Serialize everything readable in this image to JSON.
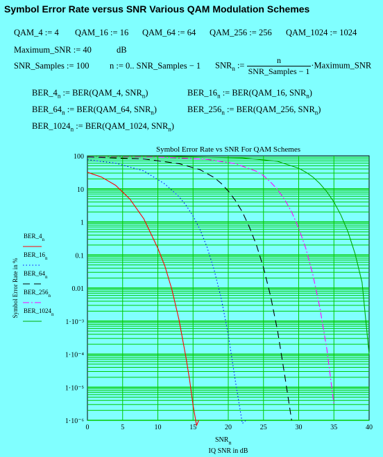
{
  "worksheet": {
    "title": "Symbol Error Rate versus SNR Various QAM Modulation Schemes",
    "defs": {
      "qam4": "QAM_4 := 4",
      "qam16": "QAM_16 := 16",
      "qam64": "QAM_64 := 64",
      "qam256": "QAM_256 := 256",
      "qam1024": "QAM_1024 := 1024",
      "max_snr": "Maximum_SNR := 40",
      "max_snr_unit": "dB",
      "snr_samples": "SNR_Samples := 100",
      "range": "n := 0.. SNR_Samples − 1",
      "snr_lhs": "SNR",
      "snr_sub": "n",
      "snr_assign": ":=",
      "frac_num": "n",
      "frac_den": "SNR_Samples − 1",
      "frac_tail": "·Maximum_SNR"
    },
    "ber_defs": [
      {
        "lhs": "BER_4",
        "sub": "n",
        "rhs": ":= BER(QAM_4, SNR",
        "rhs_tail": ")"
      },
      {
        "lhs": "BER_16",
        "sub": "n",
        "rhs": ":= BER(QAM_16, SNR",
        "rhs_tail": ")"
      },
      {
        "lhs": "BER_64",
        "sub": "n",
        "rhs": ":= BER(QAM_64, SNR",
        "rhs_tail": ")"
      },
      {
        "lhs": "BER_256",
        "sub": "n",
        "rhs": ":= BER(QAM_256, SNR",
        "rhs_tail": ")"
      },
      {
        "lhs": "BER_1024",
        "sub": "n",
        "rhs": ":= BER(QAM_1024, SNR",
        "rhs_tail": ")"
      }
    ]
  },
  "chart_data": {
    "type": "line",
    "title": "Symbol Error Rate vs SNR For QAM Schemes",
    "xlabel": "SNR",
    "xlabel_sub": "n",
    "xlabel2": "IQ SNR in dB",
    "ylabel": "Symbol Error Rate in %",
    "xlim": [
      0,
      40
    ],
    "ylim": [
      1e-06,
      100
    ],
    "y_scale": "log",
    "x_ticks": [
      "0",
      "5",
      "10",
      "15",
      "20",
      "25",
      "30",
      "35",
      "40"
    ],
    "y_ticks": [
      "100",
      "10",
      "1",
      "0.1",
      "0.01",
      "1·10⁻³",
      "1·10⁻⁴",
      "1·10⁻⁵",
      "1·10⁻⁶"
    ],
    "grid": true,
    "legend": "left",
    "series": [
      {
        "name": "BER_4",
        "sub": "n",
        "color": "#ff0000",
        "dash": "",
        "x": [
          0,
          2,
          4,
          6,
          8,
          10,
          11,
          12,
          13,
          14,
          14.5,
          15,
          15.5,
          15.8
        ],
        "y": [
          31.7,
          22.8,
          12.8,
          5.0,
          1.25,
          0.16,
          0.046,
          0.0089,
          0.0011,
          7.8e-05,
          1.7e-05,
          2.8e-06,
          7e-07,
          1e-06
        ]
      },
      {
        "name": "BER_16",
        "sub": "n",
        "color": "#0000ff",
        "dash": "1.5,3",
        "x": [
          0,
          4,
          8,
          11,
          13,
          14,
          15,
          16,
          17,
          18,
          19,
          20,
          21,
          22,
          22.5
        ],
        "y": [
          76,
          60,
          35,
          14,
          5.8,
          3.2,
          1.5,
          0.58,
          0.17,
          0.035,
          0.0048,
          0.00039,
          1.6e-05,
          8e-07,
          1e-06
        ]
      },
      {
        "name": "BER_64",
        "sub": "n",
        "color": "#000000",
        "dash": "10,6",
        "x": [
          0,
          8,
          13,
          16,
          18,
          19,
          20,
          21,
          22,
          23,
          24,
          25,
          26,
          27,
          28,
          29
        ],
        "y": [
          92,
          80,
          58,
          38,
          22,
          14.5,
          8.6,
          4.5,
          2.0,
          0.7,
          0.2,
          0.041,
          0.0058,
          0.0005,
          2.4e-05,
          1e-06
        ]
      },
      {
        "name": "BER_256",
        "sub": "n",
        "color": "#ff00ff",
        "dash": "9,3,2,3",
        "x": [
          0,
          10,
          17,
          21,
          24,
          25,
          26,
          27,
          28,
          29,
          30,
          31,
          32,
          33,
          34,
          35
        ],
        "y": [
          97,
          92,
          78,
          58,
          34,
          25,
          16,
          9.5,
          4.8,
          2.0,
          0.65,
          0.16,
          0.026,
          0.0026,
          0.00014,
          3e-06
        ]
      },
      {
        "name": "BER_1024",
        "sub": "n",
        "color": "#00aa00",
        "dash": "",
        "x": [
          0,
          12,
          22,
          27,
          30,
          31,
          32,
          33,
          34,
          35,
          36,
          37,
          38,
          39,
          40
        ],
        "y": [
          99,
          96,
          86,
          68,
          42,
          32,
          23,
          14.5,
          8.2,
          4.0,
          1.6,
          0.5,
          0.11,
          0.015,
          0.0001
        ]
      }
    ]
  }
}
